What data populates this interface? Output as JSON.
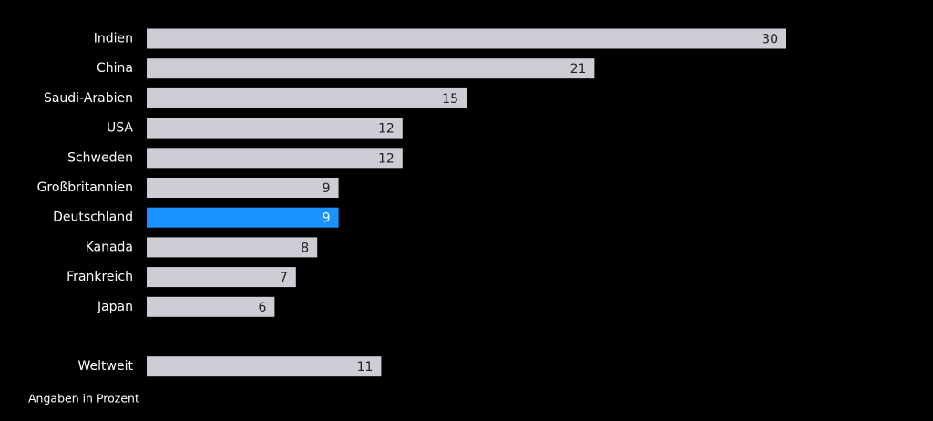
{
  "chart_data": {
    "type": "barh",
    "categories": [
      "Indien",
      "China",
      "Saudi-Arabien",
      "USA",
      "Schweden",
      "Großbritannien",
      "Deutschland",
      "Kanada",
      "Frankreich",
      "Japan",
      null,
      "Weltweit"
    ],
    "values": [
      30,
      21,
      15,
      12,
      12,
      9,
      9,
      8,
      7,
      6,
      null,
      11
    ],
    "colors": [
      "#cdcdd6",
      "#cdcdd6",
      "#cdcdd6",
      "#cdcdd6",
      "#cdcdd6",
      "#cdcdd6",
      "#1a93ff",
      "#cdcdd6",
      "#cdcdd6",
      "#cdcdd6",
      null,
      "#cdcdd6"
    ],
    "label_colors": [
      "#222222",
      "#222222",
      "#222222",
      "#222222",
      "#222222",
      "#222222",
      "#ffffff",
      "#222222",
      "#222222",
      "#222222",
      null,
      "#222222"
    ],
    "xlim": [
      0,
      30
    ],
    "note": "Angaben in Prozent"
  }
}
